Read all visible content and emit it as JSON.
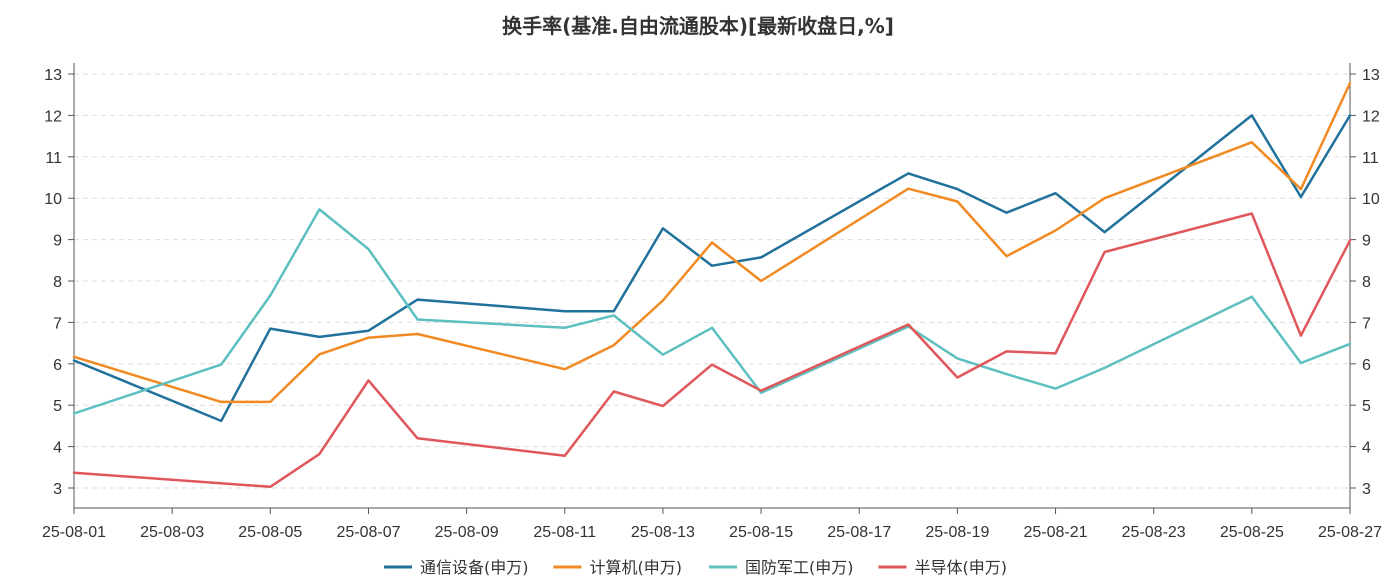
{
  "chart_data": {
    "type": "line",
    "title": "换手率(基准.自由流通股本)[最新收盘日,%]",
    "xlabel": "",
    "ylabel": "",
    "ylim": [
      2.5,
      13.4
    ],
    "y_ticks": [
      3,
      4,
      5,
      6,
      7,
      8,
      9,
      10,
      11,
      12,
      13
    ],
    "x_tick_labels": [
      "25-08-01",
      "25-08-03",
      "25-08-05",
      "25-08-07",
      "25-08-09",
      "25-08-11",
      "25-08-13",
      "25-08-15",
      "25-08-17",
      "25-08-19",
      "25-08-21",
      "25-08-23",
      "25-08-25",
      "25-08-27"
    ],
    "grid": true,
    "legend_position": "bottom",
    "series": [
      {
        "name": "通信设备(申万)",
        "color": "#21719b",
        "points": [
          [
            "25-08-01",
            6.08
          ],
          [
            "25-08-04",
            4.62
          ],
          [
            "25-08-05",
            6.85
          ],
          [
            "25-08-06",
            6.65
          ],
          [
            "25-08-07",
            6.8
          ],
          [
            "25-08-08",
            7.55
          ],
          [
            "25-08-11",
            7.27
          ],
          [
            "25-08-12",
            7.27
          ],
          [
            "25-08-13",
            9.27
          ],
          [
            "25-08-14",
            8.37
          ],
          [
            "25-08-15",
            8.57
          ],
          [
            "25-08-18",
            10.6
          ],
          [
            "25-08-19",
            10.22
          ],
          [
            "25-08-20",
            9.65
          ],
          [
            "25-08-21",
            10.12
          ],
          [
            "25-08-22",
            9.18
          ],
          [
            "25-08-25",
            12.0
          ],
          [
            "25-08-26",
            10.03
          ],
          [
            "25-08-27",
            12.0
          ]
        ]
      },
      {
        "name": "计算机(申万)",
        "color": "#f18a22",
        "points": [
          [
            "25-08-01",
            6.17
          ],
          [
            "25-08-04",
            5.08
          ],
          [
            "25-08-05",
            5.08
          ],
          [
            "25-08-06",
            6.23
          ],
          [
            "25-08-07",
            6.63
          ],
          [
            "25-08-08",
            6.72
          ],
          [
            "25-08-11",
            5.87
          ],
          [
            "25-08-12",
            6.45
          ],
          [
            "25-08-13",
            7.53
          ],
          [
            "25-08-14",
            8.93
          ],
          [
            "25-08-15",
            8.0
          ],
          [
            "25-08-18",
            10.23
          ],
          [
            "25-08-19",
            9.92
          ],
          [
            "25-08-20",
            8.6
          ],
          [
            "25-08-21",
            9.22
          ],
          [
            "25-08-22",
            10.0
          ],
          [
            "25-08-25",
            11.35
          ],
          [
            "25-08-26",
            10.22
          ],
          [
            "25-08-27",
            12.78
          ]
        ]
      },
      {
        "name": "国防军工(申万)",
        "color": "#5dbfbf",
        "points": [
          [
            "25-08-01",
            4.8
          ],
          [
            "25-08-04",
            5.98
          ],
          [
            "25-08-05",
            7.65
          ],
          [
            "25-08-06",
            9.73
          ],
          [
            "25-08-07",
            8.77
          ],
          [
            "25-08-08",
            7.07
          ],
          [
            "25-08-11",
            6.87
          ],
          [
            "25-08-12",
            7.17
          ],
          [
            "25-08-13",
            6.22
          ],
          [
            "25-08-14",
            6.87
          ],
          [
            "25-08-15",
            5.3
          ],
          [
            "25-08-18",
            6.9
          ],
          [
            "25-08-19",
            6.13
          ],
          [
            "25-08-20",
            5.75
          ],
          [
            "25-08-21",
            5.4
          ],
          [
            "25-08-22",
            5.9
          ],
          [
            "25-08-25",
            7.62
          ],
          [
            "25-08-26",
            6.02
          ],
          [
            "25-08-27",
            6.48
          ]
        ]
      },
      {
        "name": "半导体(申万)",
        "color": "#e0575b",
        "points": [
          [
            "25-08-01",
            3.37
          ],
          [
            "25-08-05",
            3.03
          ],
          [
            "25-08-06",
            3.82
          ],
          [
            "25-08-07",
            5.6
          ],
          [
            "25-08-08",
            4.2
          ],
          [
            "25-08-11",
            3.78
          ],
          [
            "25-08-12",
            5.33
          ],
          [
            "25-08-13",
            4.98
          ],
          [
            "25-08-14",
            5.98
          ],
          [
            "25-08-15",
            5.35
          ],
          [
            "25-08-18",
            6.95
          ],
          [
            "25-08-19",
            5.67
          ],
          [
            "25-08-20",
            6.3
          ],
          [
            "25-08-21",
            6.25
          ],
          [
            "25-08-22",
            8.7
          ],
          [
            "25-08-25",
            9.63
          ],
          [
            "25-08-26",
            6.68
          ],
          [
            "25-08-27",
            8.98
          ]
        ]
      }
    ]
  }
}
